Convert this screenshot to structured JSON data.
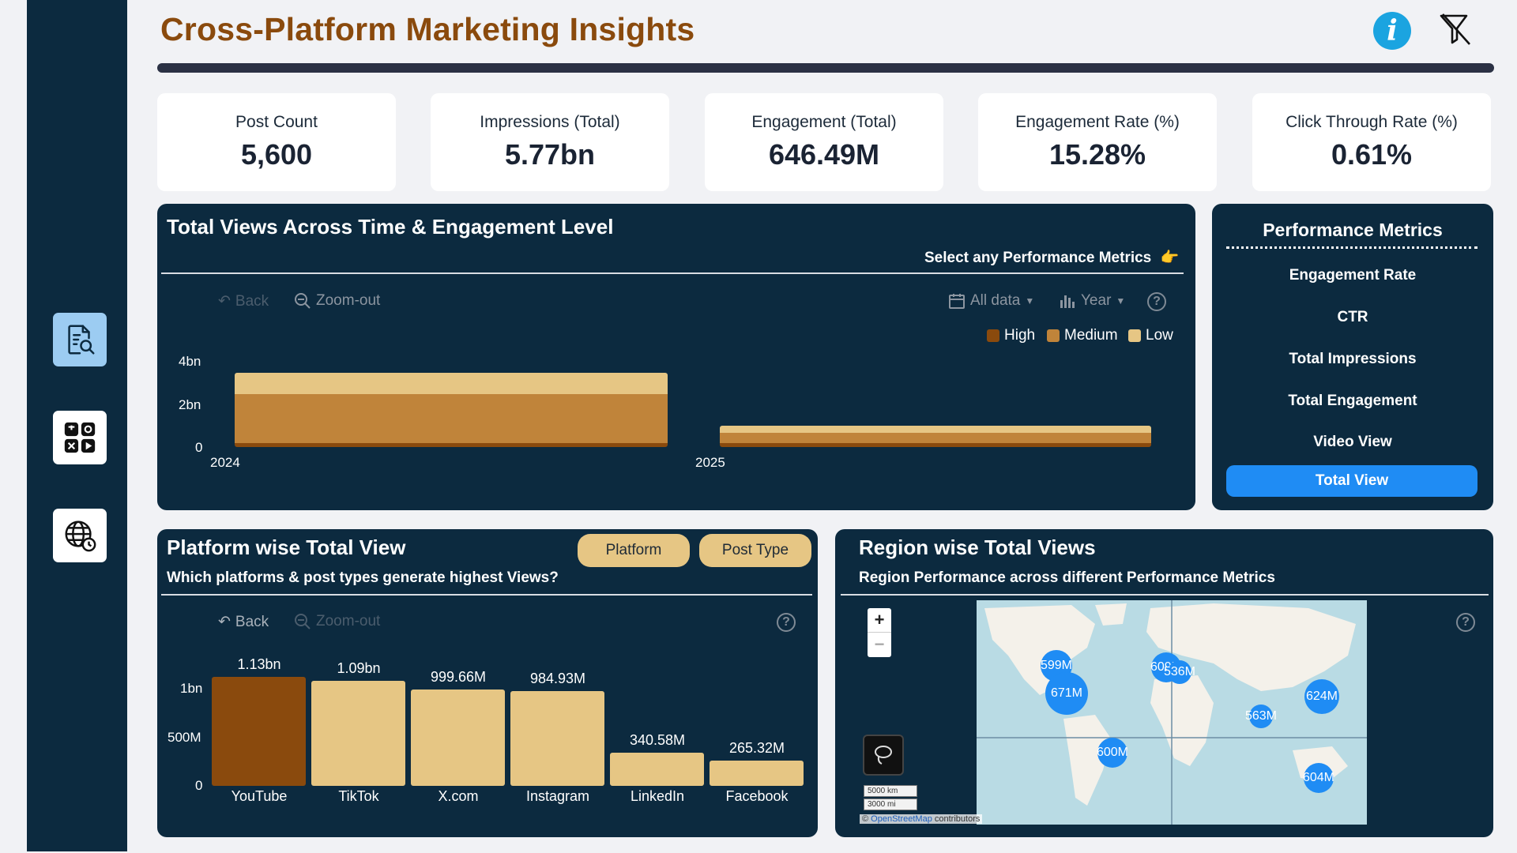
{
  "header": {
    "title": "Cross-Platform Marketing Insights",
    "info_icon": "info-icon",
    "filter_icon": "filter-clear-icon"
  },
  "sidebar": {
    "items": [
      {
        "icon": "document-search-icon",
        "active": true
      },
      {
        "icon": "apps-grid-icon",
        "active": false
      },
      {
        "icon": "globe-clock-icon",
        "active": false
      }
    ]
  },
  "kpis": [
    {
      "label": "Post Count",
      "value": "5,600"
    },
    {
      "label": "Impressions (Total)",
      "value": "5.77bn"
    },
    {
      "label": "Engagement (Total)",
      "value": "646.49M"
    },
    {
      "label": "Engagement Rate (%)",
      "value": "15.28%"
    },
    {
      "label": "Click Through Rate (%)",
      "value": "0.61%"
    }
  ],
  "views_panel": {
    "title": "Total Views Across Time & Engagement Level",
    "subtitle": "Select any Performance Metrics",
    "pointer_emoji": "👉",
    "toolbar": {
      "back": "Back",
      "zoom_out": "Zoom-out",
      "all_data": "All data",
      "year": "Year",
      "help": "?"
    }
  },
  "metrics_panel": {
    "title": "Performance Metrics",
    "items": [
      "Engagement Rate",
      "CTR",
      "Total Impressions",
      "Total Engagement",
      "Video View"
    ],
    "active": "Total View"
  },
  "platform_panel": {
    "title": "Platform wise Total View",
    "subtitle": "Which platforms & post types generate highest Views?",
    "buttons": [
      "Platform",
      "Post Type"
    ],
    "toolbar": {
      "back": "Back",
      "zoom_out": "Zoom-out",
      "help": "?"
    }
  },
  "region_panel": {
    "title": "Region wise Total Views",
    "subtitle": "Region Performance across different Performance Metrics",
    "help": "?",
    "zoom_in": "+",
    "zoom_out": "−",
    "scale_km": "5000 km",
    "scale_mi": "3000 mi",
    "credit_prefix": "©",
    "credit_link": "OpenStreetMap",
    "credit_suffix": "contributors",
    "bubbles": [
      {
        "label": "599M"
      },
      {
        "label": "671M"
      },
      {
        "label": "609M"
      },
      {
        "label": "536M"
      },
      {
        "label": "624M"
      },
      {
        "label": "563M"
      },
      {
        "label": "600M"
      },
      {
        "label": "604M"
      }
    ]
  },
  "chart_data": [
    {
      "type": "bar",
      "orientation": "stacked-horizontal",
      "categories": [
        "2024",
        "2025"
      ],
      "series": [
        {
          "name": "High",
          "color": "#8a4a0d",
          "values": [
            0.2,
            0.2
          ]
        },
        {
          "name": "Medium",
          "color": "#c0843a",
          "values": [
            2.3,
            0.45
          ]
        },
        {
          "name": "Low",
          "color": "#e6c684",
          "values": [
            1.0,
            0.35
          ]
        }
      ],
      "yticks": [
        "4bn",
        "2bn",
        "0"
      ],
      "ylim": [
        0,
        4
      ],
      "legend_position": "top-right"
    },
    {
      "type": "bar",
      "categories": [
        "YouTube",
        "TikTok",
        "X.com",
        "Instagram",
        "LinkedIn",
        "Facebook"
      ],
      "values": [
        1130000000,
        1090000000,
        999660000,
        984930000,
        340580000,
        265320000
      ],
      "data_labels": [
        "1.13bn",
        "1.09bn",
        "999.66M",
        "984.93M",
        "340.58M",
        "265.32M"
      ],
      "highlight_color": "#8a4a0d",
      "base_color": "#e6c684",
      "yticks": [
        "1bn",
        "500M",
        "0"
      ],
      "ylim": [
        0,
        1130000000
      ]
    }
  ]
}
